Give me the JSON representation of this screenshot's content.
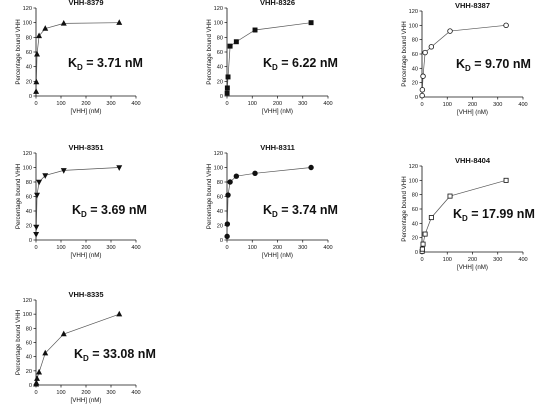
{
  "figure": {
    "ylabel": "Percentage bound VHH",
    "xlabel": "[VHH] (nM)",
    "kd_symbol": "K",
    "kd_subscript": "D"
  },
  "chart_data": [
    {
      "type": "line",
      "title": "VHH-8379",
      "xlabel": "[VHH] (nM)",
      "ylabel": "Percentage bound VHH",
      "xlim": [
        0,
        400
      ],
      "ylim": [
        0,
        120
      ],
      "xticks": [
        0,
        100,
        200,
        300,
        400
      ],
      "yticks": [
        0,
        20,
        40,
        60,
        80,
        100,
        120
      ],
      "marker": "triangle-up-filled",
      "x": [
        0.5,
        1.4,
        4.1,
        12.3,
        37,
        111,
        333
      ],
      "y": [
        6,
        19,
        57,
        82,
        92,
        99,
        100
      ],
      "kd_value": "= 3.71 nM",
      "grid": false
    },
    {
      "type": "line",
      "title": "VHH-8326",
      "xlabel": "[VHH] (nM)",
      "ylabel": "Percentage bound VHH",
      "xlim": [
        0,
        400
      ],
      "ylim": [
        0,
        120
      ],
      "xticks": [
        0,
        100,
        200,
        300,
        400
      ],
      "yticks": [
        0,
        20,
        40,
        60,
        80,
        100,
        120
      ],
      "marker": "square-filled",
      "x": [
        0.5,
        1.4,
        4.1,
        12.3,
        37,
        111,
        333
      ],
      "y": [
        4,
        11,
        26,
        68,
        74,
        90,
        100
      ],
      "kd_value": "= 6.22 nM",
      "grid": false
    },
    {
      "type": "line",
      "title": "VHH-8387",
      "xlabel": "[VHH] (nM)",
      "ylabel": "Percentage bound VHH",
      "xlim": [
        0,
        400
      ],
      "ylim": [
        0,
        120
      ],
      "xticks": [
        0,
        100,
        200,
        300,
        400
      ],
      "yticks": [
        0,
        20,
        40,
        60,
        80,
        100,
        120
      ],
      "marker": "circle-open",
      "x": [
        0.5,
        1.4,
        4.1,
        12.3,
        37,
        111,
        333
      ],
      "y": [
        2,
        10,
        29,
        62,
        70,
        92,
        100
      ],
      "kd_value": "= 9.70 nM",
      "grid": false
    },
    {
      "type": "line",
      "title": "VHH-8351",
      "xlabel": "[VHH] (nM)",
      "ylabel": "Percentage bound VHH",
      "xlim": [
        0,
        400
      ],
      "ylim": [
        0,
        120
      ],
      "xticks": [
        0,
        100,
        200,
        300,
        400
      ],
      "yticks": [
        0,
        20,
        40,
        60,
        80,
        100,
        120
      ],
      "marker": "triangle-down-filled",
      "x": [
        0.5,
        1.4,
        4.1,
        12.3,
        37,
        111,
        333
      ],
      "y": [
        8,
        18,
        62,
        80,
        89,
        96,
        100
      ],
      "kd_value": "= 3.69 nM",
      "grid": false
    },
    {
      "type": "line",
      "title": "VHH-8311",
      "xlabel": "[VHH] (nM)",
      "ylabel": "Percentage bound VHH",
      "xlim": [
        0,
        400
      ],
      "ylim": [
        0,
        120
      ],
      "xticks": [
        0,
        100,
        200,
        300,
        400
      ],
      "yticks": [
        0,
        20,
        40,
        60,
        80,
        100,
        120
      ],
      "marker": "diamond-filled",
      "x": [
        0.5,
        1.4,
        4.1,
        12.3,
        37,
        111,
        333
      ],
      "y": [
        5,
        22,
        62,
        80,
        88,
        92,
        100
      ],
      "kd_value": "= 3.74 nM",
      "grid": false
    },
    {
      "type": "line",
      "title": "VHH-8404",
      "xlabel": "[VHH] (nM)",
      "ylabel": "Percentage bound VHH",
      "xlim": [
        0,
        400
      ],
      "ylim": [
        0,
        120
      ],
      "xticks": [
        0,
        100,
        200,
        300,
        400
      ],
      "yticks": [
        0,
        20,
        40,
        60,
        80,
        100,
        120
      ],
      "marker": "square-open",
      "x": [
        0.5,
        1.4,
        4.1,
        12.3,
        37,
        111,
        333
      ],
      "y": [
        1,
        4,
        11,
        25,
        48,
        78,
        100
      ],
      "kd_value": "= 17.99 nM",
      "grid": false
    },
    {
      "type": "line",
      "title": "VHH-8335",
      "xlabel": "[VHH] (nM)",
      "ylabel": "Percentage bound VHH",
      "xlim": [
        0,
        400
      ],
      "ylim": [
        0,
        120
      ],
      "xticks": [
        0,
        100,
        200,
        300,
        400
      ],
      "yticks": [
        0,
        20,
        40,
        60,
        80,
        100,
        120
      ],
      "marker": "triangle-up-filled",
      "x": [
        0.5,
        1.4,
        4.1,
        12.3,
        37,
        111,
        333
      ],
      "y": [
        1,
        3,
        9,
        18,
        45,
        72,
        100
      ],
      "kd_value": "= 33.08 nM",
      "grid": false
    }
  ]
}
